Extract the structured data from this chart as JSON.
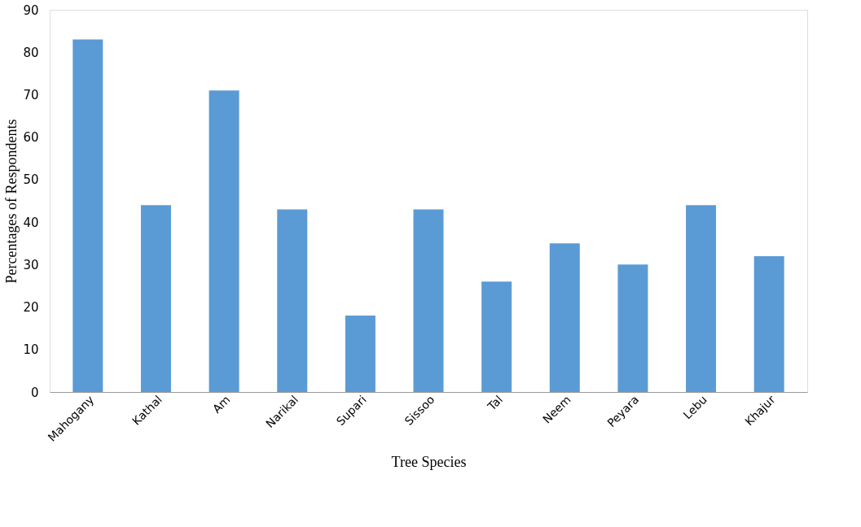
{
  "chart_data": {
    "type": "bar",
    "xlabel": "Tree Species",
    "ylabel": "Percentages of Respondents",
    "categories": [
      "Mahogany",
      "Kathal",
      "Am",
      "Narikal",
      "Supari",
      "Sissoo",
      "Tal",
      "Neem",
      "Peyara",
      "Lebu",
      "Khajur"
    ],
    "values": [
      83,
      44,
      71,
      43,
      18,
      43,
      26,
      35,
      30,
      44,
      32
    ],
    "color": "#5b9bd5",
    "ylim": [
      0,
      90
    ],
    "yticks": [
      0,
      10,
      20,
      30,
      40,
      50,
      60,
      70,
      80,
      90
    ],
    "grid": false
  }
}
